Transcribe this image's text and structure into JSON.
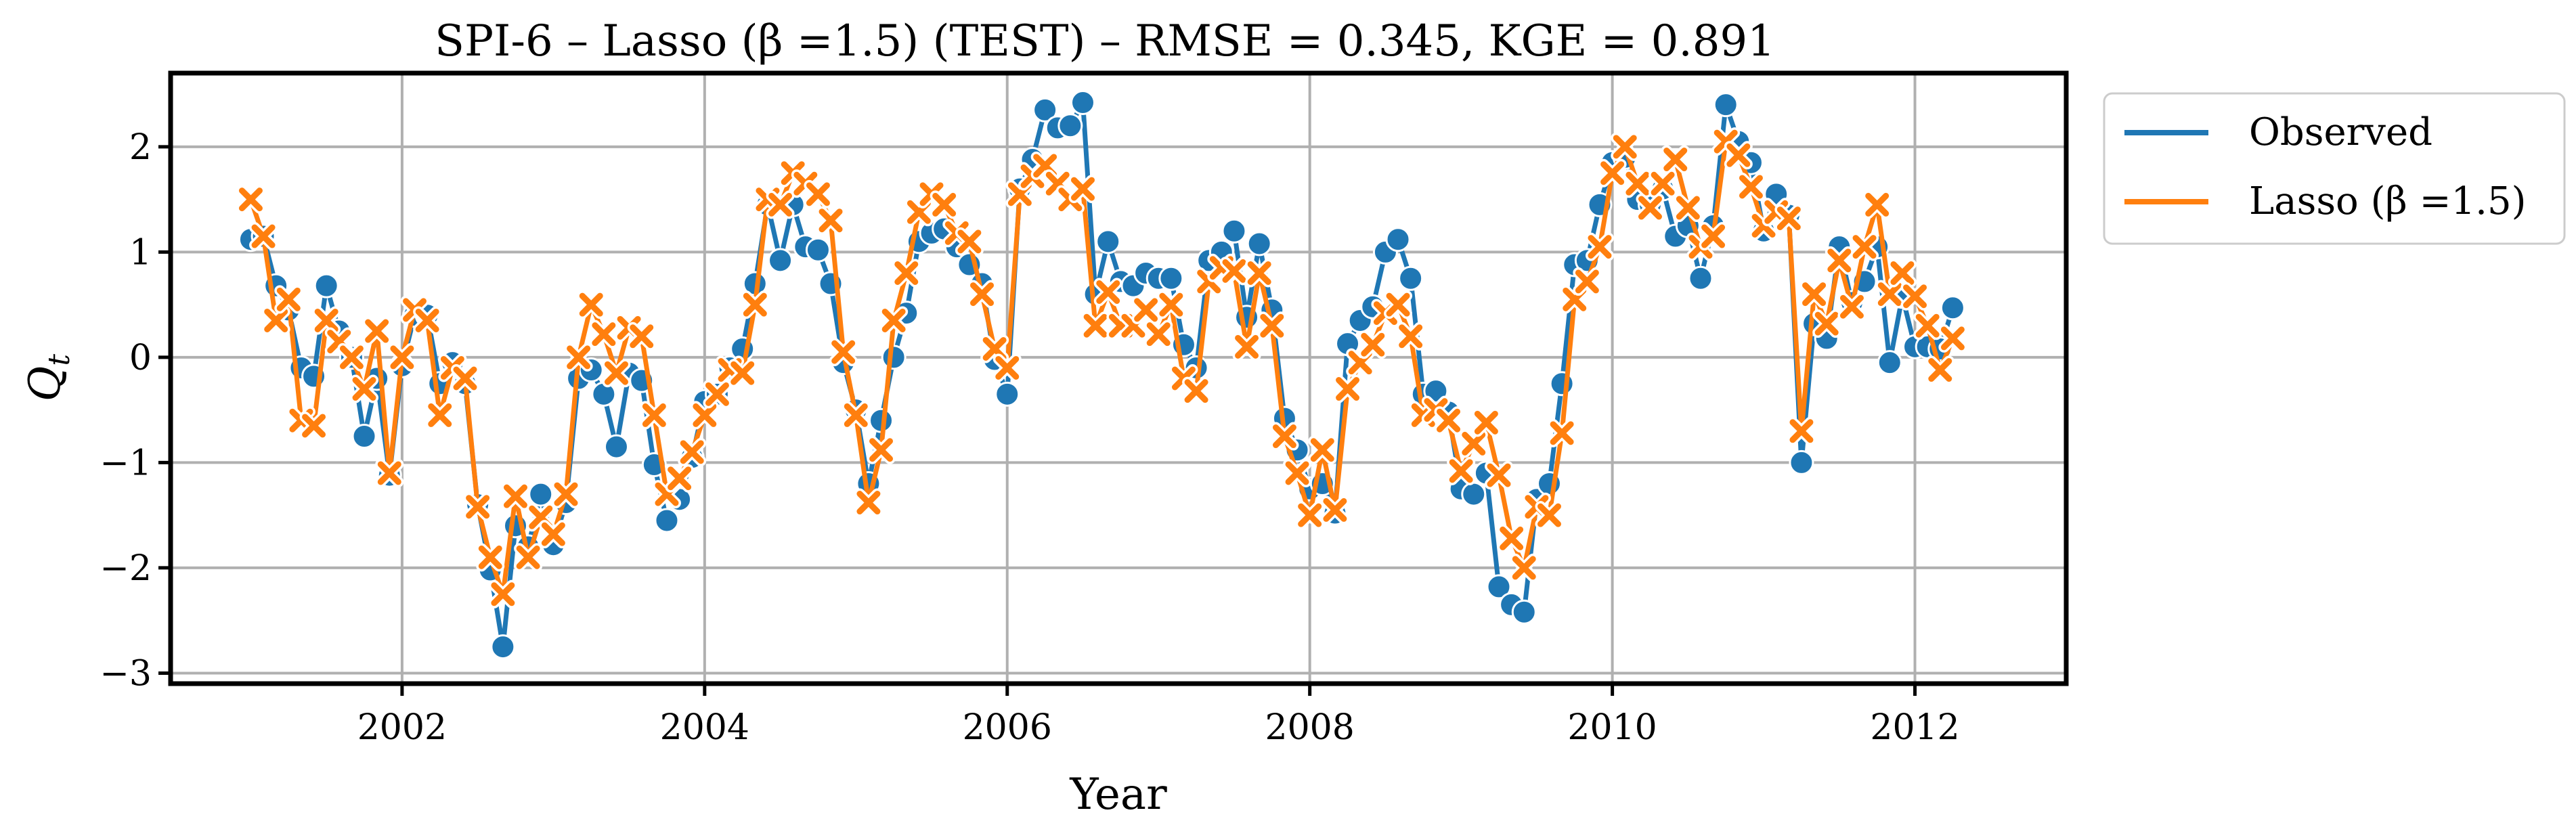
{
  "chart_data": {
    "type": "line",
    "title": "SPI-6 – Lasso (β =1.5) (TEST) – RMSE = 0.345, KGE = 0.891",
    "xlabel": "Year",
    "ylabel": "Q_t",
    "xlim": [
      2000.47,
      2013.0
    ],
    "ylim": [
      -3.1,
      2.7
    ],
    "x_ticks": [
      2002,
      2004,
      2006,
      2008,
      2010,
      2012
    ],
    "x_tick_labels": [
      "2002",
      "2004",
      "2006",
      "2008",
      "2010",
      "2012"
    ],
    "y_ticks": [
      -3,
      -2,
      -1,
      0,
      1,
      2
    ],
    "y_tick_labels": [
      "−3",
      "−2",
      "−1",
      "0",
      "1",
      "2"
    ],
    "grid": true,
    "legend_position": "outside-right-top",
    "x_start_year": 2001,
    "x_start_month": 1,
    "series": [
      {
        "name": "Observed",
        "color": "#1f77b4",
        "marker": "circle",
        "values": [
          1.12,
          1.15,
          0.68,
          0.45,
          -0.1,
          -0.18,
          0.68,
          0.25,
          0.0,
          -0.75,
          -0.2,
          -1.12,
          -0.08,
          0.4,
          0.4,
          -0.25,
          -0.05,
          -0.25,
          -1.4,
          -2.02,
          -2.75,
          -1.6,
          -1.8,
          -1.3,
          -1.78,
          -1.38,
          -0.2,
          -0.12,
          -0.35,
          -0.85,
          -0.15,
          -0.22,
          -1.02,
          -1.55,
          -1.35,
          -0.95,
          -0.42,
          -0.35,
          -0.1,
          0.08,
          0.7,
          1.45,
          0.92,
          1.45,
          1.05,
          1.02,
          0.7,
          -0.05,
          -0.5,
          -1.2,
          -0.6,
          0.0,
          0.42,
          1.1,
          1.18,
          1.22,
          1.05,
          0.88,
          0.7,
          -0.02,
          -0.35,
          1.6,
          1.88,
          2.35,
          2.18,
          2.2,
          2.42,
          0.6,
          1.1,
          0.72,
          0.68,
          0.8,
          0.75,
          0.75,
          0.12,
          -0.1,
          0.92,
          1.0,
          1.2,
          0.38,
          1.08,
          0.45,
          -0.58,
          -0.88,
          -1.25,
          -1.2,
          -1.48,
          0.13,
          0.35,
          0.48,
          1.0,
          1.12,
          0.75,
          -0.35,
          -0.32,
          -0.52,
          -1.25,
          -1.3,
          -1.1,
          -2.18,
          -2.35,
          -2.42,
          -1.35,
          -1.2,
          -0.25,
          0.88,
          0.92,
          1.45,
          1.85,
          1.9,
          1.5,
          1.45,
          1.6,
          1.15,
          1.25,
          0.75,
          1.25,
          2.4,
          2.05,
          1.85,
          1.2,
          1.55,
          1.35,
          -1.0,
          0.32,
          0.18,
          1.05,
          0.52,
          0.72,
          1.05,
          -0.05,
          0.58,
          0.1,
          0.1,
          0.08,
          0.47
        ]
      },
      {
        "name": "Lasso (β =1.5)",
        "color": "#ff7f0e",
        "marker": "x",
        "values": [
          1.5,
          1.15,
          0.35,
          0.55,
          -0.6,
          -0.65,
          0.35,
          0.15,
          0.0,
          -0.3,
          0.25,
          -1.1,
          0.0,
          0.45,
          0.35,
          -0.55,
          -0.1,
          -0.2,
          -1.42,
          -1.9,
          -2.25,
          -1.32,
          -1.9,
          -1.52,
          -1.68,
          -1.3,
          0.0,
          0.5,
          0.22,
          -0.15,
          0.28,
          0.2,
          -0.55,
          -1.3,
          -1.15,
          -0.9,
          -0.55,
          -0.35,
          -0.12,
          -0.15,
          0.5,
          1.5,
          1.45,
          1.75,
          1.65,
          1.55,
          1.3,
          0.05,
          -0.55,
          -1.38,
          -0.88,
          0.35,
          0.8,
          1.38,
          1.55,
          1.45,
          1.18,
          1.1,
          0.6,
          0.08,
          -0.1,
          1.55,
          1.72,
          1.82,
          1.65,
          1.5,
          1.6,
          0.3,
          0.62,
          0.3,
          0.3,
          0.45,
          0.22,
          0.5,
          -0.2,
          -0.32,
          0.72,
          0.85,
          0.82,
          0.1,
          0.8,
          0.3,
          -0.75,
          -1.1,
          -1.5,
          -0.88,
          -1.45,
          -0.3,
          -0.05,
          0.12,
          0.42,
          0.5,
          0.2,
          -0.55,
          -0.5,
          -0.6,
          -1.08,
          -0.82,
          -0.62,
          -1.12,
          -1.72,
          -2.0,
          -1.42,
          -1.5,
          -0.72,
          0.55,
          0.72,
          1.05,
          1.75,
          2.0,
          1.65,
          1.42,
          1.65,
          1.88,
          1.42,
          1.05,
          1.15,
          2.05,
          1.92,
          1.62,
          1.25,
          1.38,
          1.32,
          -0.7,
          0.6,
          0.32,
          0.92,
          0.48,
          1.05,
          1.45,
          0.6,
          0.8,
          0.58,
          0.3,
          -0.12,
          0.18
        ]
      }
    ]
  }
}
